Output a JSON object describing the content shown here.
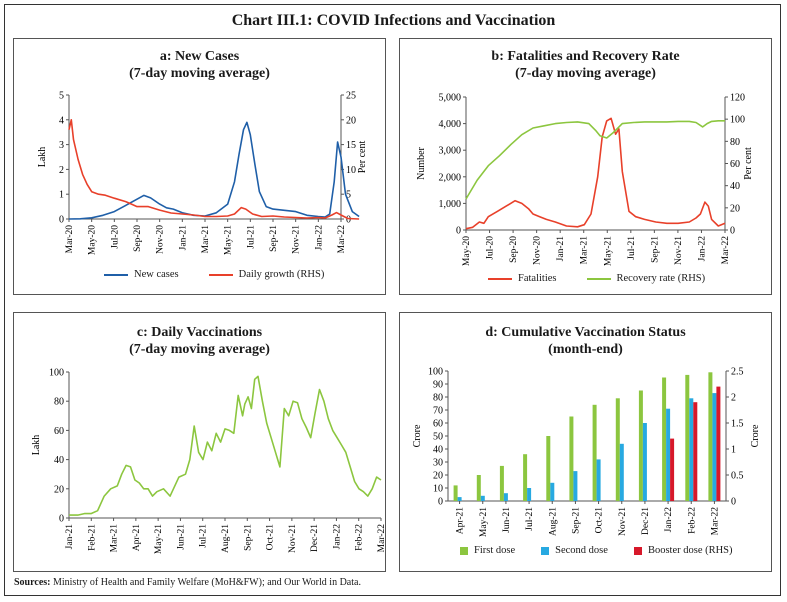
{
  "title": "Chart III.1: COVID Infections and Vaccination",
  "sources_label": "Sources:",
  "sources_text": " Ministry of Health and Family Welfare (MoH&FW); and Our World in Data.",
  "colors": {
    "blue": "#1f5fa8",
    "red": "#e8402a",
    "green": "#8cc63f",
    "cyan": "#27a9e1",
    "crimson": "#d7182a"
  },
  "chart_data": [
    {
      "id": "a",
      "type": "line",
      "title_line1": "a: New Cases",
      "title_line2": "(7-day moving average)",
      "ylabel": "Lakh",
      "y2label": "Per cent",
      "ylim": [
        0,
        5
      ],
      "yticks": [
        "0",
        "1",
        "2",
        "3",
        "4",
        "5"
      ],
      "y2lim": [
        0,
        25
      ],
      "y2ticks": [
        "0",
        "5",
        "10",
        "15",
        "20",
        "25"
      ],
      "xticks": [
        "Mar-20",
        "May-20",
        "Jul-20",
        "Sep-20",
        "Nov-20",
        "Jan-21",
        "Mar-21",
        "May-21",
        "Jul-21",
        "Sep-21",
        "Nov-21",
        "Jan-22",
        "Mar-22"
      ],
      "series": [
        {
          "name": "New cases",
          "color": "#1f5fa8",
          "axis": "left",
          "x": [
            0,
            0.5,
            1,
            1.5,
            2,
            2.5,
            3,
            3.3,
            3.6,
            4,
            4.3,
            4.6,
            5,
            5.5,
            6,
            6.5,
            7,
            7.3,
            7.5,
            7.7,
            7.85,
            8,
            8.2,
            8.4,
            8.7,
            9,
            9.5,
            10,
            10.5,
            11,
            11.3,
            11.5,
            11.7,
            11.85,
            12,
            12.2,
            12.5,
            12.8
          ],
          "y": [
            0,
            0.01,
            0.05,
            0.15,
            0.3,
            0.55,
            0.8,
            0.95,
            0.85,
            0.6,
            0.45,
            0.4,
            0.25,
            0.15,
            0.12,
            0.25,
            0.6,
            1.5,
            2.6,
            3.6,
            3.9,
            3.4,
            2.2,
            1.1,
            0.5,
            0.4,
            0.35,
            0.3,
            0.15,
            0.1,
            0.08,
            0.2,
            1.5,
            3.1,
            2.5,
            1.0,
            0.3,
            0.1
          ]
        },
        {
          "name": "Daily growth (RHS)",
          "color": "#e8402a",
          "axis": "right",
          "x": [
            0,
            0.1,
            0.2,
            0.4,
            0.6,
            0.8,
            1,
            1.3,
            1.6,
            2,
            2.5,
            3,
            3.5,
            4,
            4.5,
            5,
            5.5,
            6,
            6.5,
            7,
            7.3,
            7.6,
            7.8,
            8.1,
            8.5,
            9,
            9.5,
            10,
            10.5,
            11,
            11.3,
            11.6,
            11.8,
            12,
            12.3,
            12.8
          ],
          "y": [
            18,
            20,
            16,
            12,
            9,
            7,
            5.5,
            5,
            4.8,
            4.2,
            3.5,
            2.5,
            2.5,
            1.8,
            1.2,
            1,
            0.8,
            0.5,
            0.5,
            0.6,
            1,
            2.3,
            2,
            1,
            0.5,
            0.6,
            0.4,
            0.3,
            0.2,
            0.3,
            0.2,
            0.8,
            1.3,
            0.8,
            0.1,
            0
          ]
        }
      ],
      "legend_position": "bottom"
    },
    {
      "id": "b",
      "type": "line",
      "title_line1": "b: Fatalities and Recovery Rate",
      "title_line2": "(7-day moving average)",
      "ylabel": "Number",
      "y2label": "Per cent",
      "ylim": [
        0,
        5000
      ],
      "yticks": [
        "0",
        "1,000",
        "2,000",
        "3,000",
        "4,000",
        "5,000"
      ],
      "y2lim": [
        0,
        120
      ],
      "y2ticks": [
        "0",
        "20",
        "40",
        "60",
        "80",
        "100",
        "120"
      ],
      "xticks": [
        "May-20",
        "Jul-20",
        "Sep-20",
        "Nov-20",
        "Jan-21",
        "Mar-21",
        "May-21",
        "Jul-21",
        "Sep-21",
        "Nov-21",
        "Jan-22",
        "Mar-22"
      ],
      "series": [
        {
          "name": "Fatalities",
          "color": "#e8402a",
          "axis": "left",
          "x": [
            0,
            0.3,
            0.6,
            0.8,
            1,
            1.4,
            1.8,
            2.2,
            2.5,
            2.8,
            3,
            3.3,
            3.6,
            4,
            4.5,
            5,
            5.3,
            5.6,
            5.9,
            6.1,
            6.3,
            6.5,
            6.7,
            6.85,
            7,
            7.3,
            7.6,
            8,
            8.5,
            9,
            9.5,
            10,
            10.3,
            10.5,
            10.7,
            10.85,
            11,
            11.3,
            11.6
          ],
          "y": [
            50,
            100,
            300,
            250,
            500,
            700,
            900,
            1100,
            1000,
            800,
            600,
            500,
            400,
            300,
            150,
            120,
            200,
            600,
            2000,
            3500,
            4100,
            4200,
            3600,
            3800,
            2200,
            700,
            500,
            400,
            300,
            250,
            250,
            300,
            450,
            600,
            1050,
            900,
            400,
            150,
            250
          ]
        },
        {
          "name": "Recovery rate (RHS)",
          "color": "#8cc63f",
          "axis": "right",
          "x": [
            0,
            0.5,
            1,
            1.5,
            2,
            2.5,
            3,
            3.5,
            4,
            4.5,
            5,
            5.5,
            5.8,
            6,
            6.3,
            6.6,
            7,
            7.5,
            8,
            8.5,
            9,
            9.5,
            10,
            10.3,
            10.6,
            10.8,
            11,
            11.3,
            11.6
          ],
          "y": [
            28,
            45,
            58,
            67,
            77,
            86,
            92,
            94,
            96,
            97,
            97.5,
            96,
            90,
            85,
            83,
            88,
            96,
            97,
            97.5,
            97.5,
            97.5,
            98,
            98,
            97,
            93,
            96,
            98,
            98.5,
            98.5
          ]
        }
      ],
      "legend_position": "bottom"
    },
    {
      "id": "c",
      "type": "line",
      "title_line1": "c: Daily Vaccinations",
      "title_line2": "(7-day moving average)",
      "ylabel": "Lakh",
      "ylim": [
        0,
        100
      ],
      "yticks": [
        "0",
        "20",
        "40",
        "60",
        "80",
        "100"
      ],
      "xticks": [
        "Jan-21",
        "Feb-21",
        "Mar-21",
        "Apr-21",
        "May-21",
        "Jun-21",
        "Jul-21",
        "Aug-21",
        "Sep-21",
        "Oct-21",
        "Nov-21",
        "Dec-21",
        "Jan-22",
        "Feb-22",
        "Mar-22"
      ],
      "series": [
        {
          "name": "Daily vaccinations",
          "color": "#8cc63f",
          "x": [
            0,
            0.4,
            0.7,
            1,
            1.3,
            1.6,
            1.9,
            2.2,
            2.4,
            2.6,
            2.8,
            3,
            3.2,
            3.4,
            3.6,
            3.8,
            4,
            4.3,
            4.6,
            5,
            5.3,
            5.5,
            5.7,
            5.9,
            6.1,
            6.3,
            6.5,
            6.7,
            6.9,
            7.1,
            7.3,
            7.5,
            7.7,
            7.9,
            8,
            8.15,
            8.3,
            8.45,
            8.6,
            8.8,
            9,
            9.2,
            9.4,
            9.6,
            9.8,
            10,
            10.2,
            10.4,
            10.6,
            10.8,
            11,
            11.2,
            11.4,
            11.6,
            11.8,
            12,
            12.2,
            12.4,
            12.6,
            12.8,
            13,
            13.2,
            13.4,
            13.6,
            13.8,
            14,
            14.2
          ],
          "y": [
            2,
            2,
            3,
            3,
            5,
            15,
            20,
            22,
            30,
            36,
            35,
            26,
            24,
            20,
            20,
            15,
            18,
            20,
            15,
            28,
            30,
            40,
            63,
            45,
            40,
            52,
            46,
            58,
            52,
            61,
            60,
            58,
            84,
            70,
            78,
            83,
            75,
            95,
            97,
            80,
            65,
            55,
            45,
            35,
            75,
            70,
            80,
            79,
            68,
            62,
            55,
            72,
            88,
            80,
            68,
            60,
            55,
            50,
            45,
            35,
            25,
            20,
            18,
            15,
            20,
            28,
            26
          ]
        }
      ]
    },
    {
      "id": "d",
      "type": "bar",
      "title_line1": "d: Cumulative Vaccination Status",
      "title_line2": "(month-end)",
      "ylabel": "Crore",
      "y2label": "Crore",
      "ylim": [
        0,
        100
      ],
      "yticks": [
        "0",
        "10",
        "20",
        "30",
        "40",
        "50",
        "60",
        "70",
        "80",
        "90",
        "100"
      ],
      "y2lim": [
        0,
        2.5
      ],
      "y2ticks": [
        "0",
        "0.5",
        "1",
        "1.5",
        "2",
        "2.5"
      ],
      "categories": [
        "Apr-21",
        "May-21",
        "Jun-21",
        "Jul-21",
        "Aug-21",
        "Sep-21",
        "Oct-21",
        "Nov-21",
        "Dec-21",
        "Jan-22",
        "Feb-22",
        "Mar-22"
      ],
      "series": [
        {
          "name": "First dose",
          "color": "#8cc63f",
          "axis": "left",
          "values": [
            12,
            20,
            27,
            36,
            50,
            65,
            74,
            79,
            85,
            95,
            97,
            99
          ]
        },
        {
          "name": "Second dose",
          "color": "#27a9e1",
          "axis": "left",
          "values": [
            3,
            4,
            6,
            10,
            14,
            23,
            32,
            44,
            60,
            71,
            79,
            83
          ]
        },
        {
          "name": "Booster dose (RHS)",
          "color": "#d7182a",
          "axis": "right",
          "values": [
            0,
            0,
            0,
            0,
            0,
            0,
            0,
            0,
            0,
            1.2,
            1.9,
            2.2
          ]
        }
      ],
      "legend_position": "bottom"
    }
  ]
}
